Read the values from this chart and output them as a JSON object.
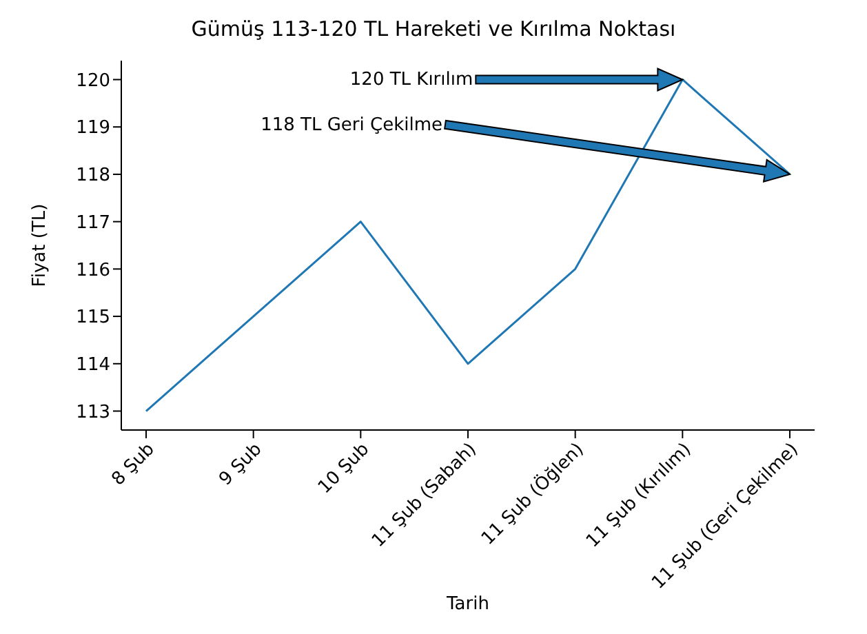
{
  "chart_data": {
    "type": "line",
    "title": "Gümüş 113-120 TL Hareketi ve Kırılma Noktası",
    "xlabel": "Tarih",
    "ylabel": "Fiyat (TL)",
    "categories": [
      "8 Şub",
      "9 Şub",
      "10 Şub",
      "11 Şub (Sabah)",
      "11 Şub (Öğlen)",
      "11 Şub (Kırılım)",
      "11 Şub (Geri Çekilme)"
    ],
    "series": [
      {
        "color": "#1f77b4",
        "values": [
          113,
          115,
          117,
          114,
          116,
          120,
          118
        ]
      }
    ],
    "ylim": [
      112.6,
      120.4
    ],
    "yticks": [
      113,
      114,
      115,
      116,
      117,
      118,
      119,
      120
    ],
    "grid": false,
    "legend": false,
    "marker": "none",
    "annotations": [
      "120 TL Kırılım",
      "118 TL Geri Çekilme"
    ]
  }
}
